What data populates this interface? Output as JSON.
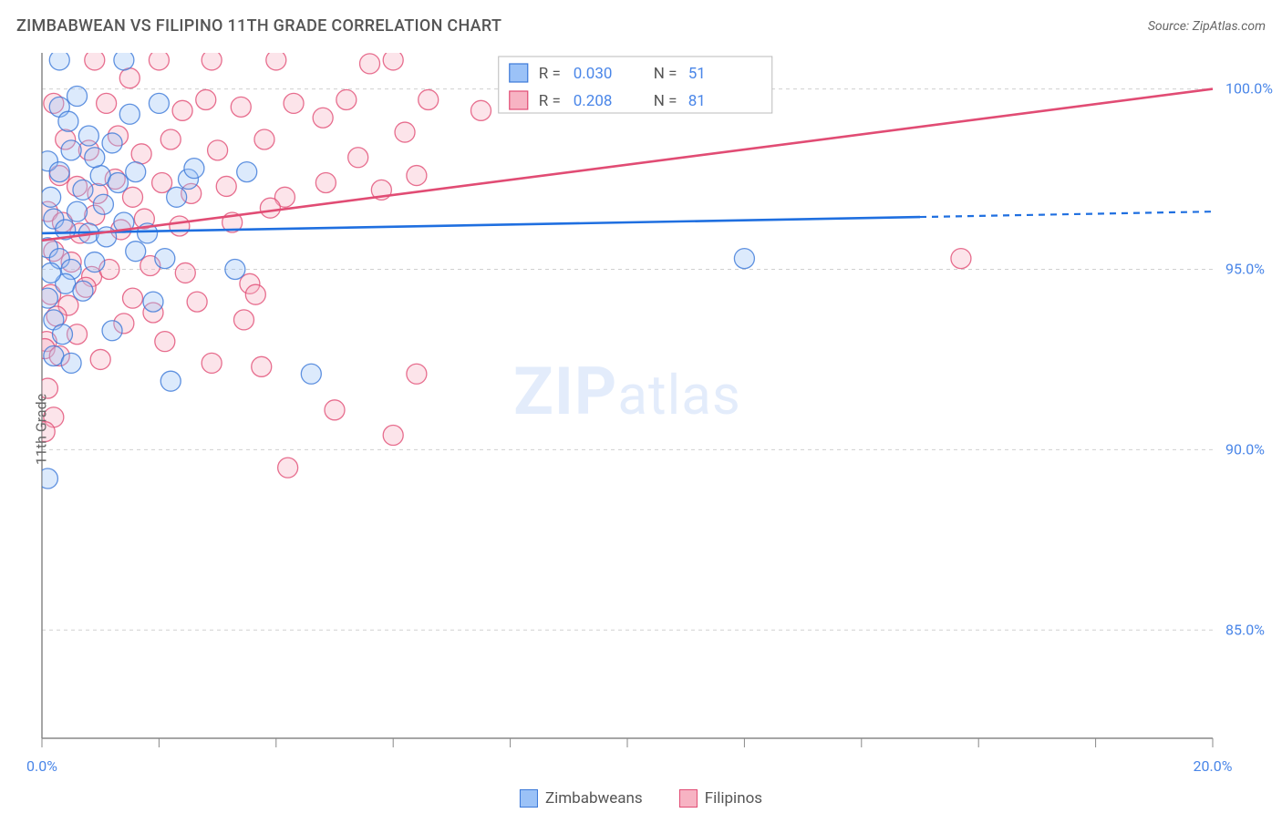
{
  "title": "ZIMBABWEAN VS FILIPINO 11TH GRADE CORRELATION CHART",
  "source_label": "Source: ZipAtlas.com",
  "ylabel": "11th Grade",
  "watermark": {
    "bold": "ZIP",
    "rest": "atlas"
  },
  "chart": {
    "type": "scatter",
    "xlim": [
      0.0,
      20.0
    ],
    "ylim": [
      82.0,
      101.0
    ],
    "x_ticks_major": [
      0.0,
      20.0
    ],
    "x_ticks_minor_step": 2.0,
    "y_grid": [
      85.0,
      90.0,
      95.0,
      100.0
    ],
    "y_tick_labels": [
      "85.0%",
      "90.0%",
      "95.0%",
      "100.0%"
    ],
    "x_tick_labels": [
      "0.0%",
      "20.0%"
    ],
    "background_color": "#ffffff",
    "grid_color": "#d0d0d0",
    "axis_color": "#888888",
    "marker_radius": 11,
    "marker_opacity": 0.35,
    "series": [
      {
        "name": "Zimbabweans",
        "label": "Zimbabweans",
        "fill": "#9bc2f7",
        "stroke": "#3b78d8",
        "line_color": "#1f6fe0",
        "trend": {
          "y_at_x0": 96.0,
          "y_at_xmax": 96.6,
          "solid_until_x": 15.0
        },
        "R": "0.030",
        "N": "51",
        "points": [
          [
            0.3,
            100.8
          ],
          [
            1.4,
            100.8
          ],
          [
            0.1,
            89.2
          ],
          [
            0.3,
            99.5
          ],
          [
            1.5,
            99.3
          ],
          [
            2.0,
            99.6
          ],
          [
            0.8,
            98.7
          ],
          [
            0.1,
            98.0
          ],
          [
            0.3,
            97.7
          ],
          [
            0.7,
            97.2
          ],
          [
            1.0,
            97.6
          ],
          [
            1.3,
            97.4
          ],
          [
            1.6,
            97.7
          ],
          [
            2.5,
            97.5
          ],
          [
            3.5,
            97.7
          ],
          [
            0.2,
            96.4
          ],
          [
            0.4,
            96.1
          ],
          [
            0.6,
            96.6
          ],
          [
            0.8,
            96.0
          ],
          [
            1.1,
            95.9
          ],
          [
            1.4,
            96.3
          ],
          [
            1.8,
            96.0
          ],
          [
            0.1,
            95.6
          ],
          [
            0.3,
            95.3
          ],
          [
            0.5,
            95.0
          ],
          [
            0.9,
            95.2
          ],
          [
            1.6,
            95.5
          ],
          [
            2.1,
            95.3
          ],
          [
            12.0,
            95.3
          ],
          [
            0.4,
            94.6
          ],
          [
            0.1,
            94.2
          ],
          [
            0.7,
            94.4
          ],
          [
            0.2,
            93.6
          ],
          [
            0.35,
            93.2
          ],
          [
            1.2,
            93.3
          ],
          [
            0.15,
            94.9
          ],
          [
            0.2,
            92.6
          ],
          [
            0.5,
            92.4
          ],
          [
            2.2,
            91.9
          ],
          [
            4.6,
            92.1
          ],
          [
            0.5,
            98.3
          ],
          [
            0.9,
            98.1
          ],
          [
            1.2,
            98.5
          ],
          [
            2.3,
            97.0
          ],
          [
            2.6,
            97.8
          ],
          [
            3.3,
            95.0
          ],
          [
            1.9,
            94.1
          ],
          [
            0.15,
            97.0
          ],
          [
            0.45,
            99.1
          ],
          [
            0.6,
            99.8
          ],
          [
            1.05,
            96.8
          ]
        ]
      },
      {
        "name": "Filipinos",
        "label": "Filipinos",
        "fill": "#f7b3c3",
        "stroke": "#e14c74",
        "line_color": "#e14c74",
        "trend": {
          "y_at_x0": 95.8,
          "y_at_xmax": 100.0,
          "solid_until_x": 20.0
        },
        "R": "0.208",
        "N": "81",
        "points": [
          [
            0.9,
            100.8
          ],
          [
            2.0,
            100.8
          ],
          [
            4.0,
            100.8
          ],
          [
            5.6,
            100.7
          ],
          [
            6.0,
            100.8
          ],
          [
            1.5,
            100.3
          ],
          [
            2.9,
            100.8
          ],
          [
            0.2,
            99.6
          ],
          [
            1.1,
            99.6
          ],
          [
            2.4,
            99.4
          ],
          [
            2.8,
            99.7
          ],
          [
            3.4,
            99.5
          ],
          [
            4.3,
            99.6
          ],
          [
            4.8,
            99.2
          ],
          [
            5.2,
            99.7
          ],
          [
            6.6,
            99.7
          ],
          [
            7.5,
            99.4
          ],
          [
            11.8,
            100.2
          ],
          [
            0.4,
            98.6
          ],
          [
            0.8,
            98.3
          ],
          [
            1.3,
            98.7
          ],
          [
            1.7,
            98.2
          ],
          [
            2.2,
            98.6
          ],
          [
            3.0,
            98.3
          ],
          [
            3.8,
            98.6
          ],
          [
            5.4,
            98.1
          ],
          [
            6.2,
            98.8
          ],
          [
            0.3,
            97.6
          ],
          [
            0.6,
            97.3
          ],
          [
            0.95,
            97.1
          ],
          [
            1.25,
            97.5
          ],
          [
            1.55,
            97.0
          ],
          [
            2.05,
            97.4
          ],
          [
            2.55,
            97.1
          ],
          [
            3.15,
            97.3
          ],
          [
            4.15,
            97.0
          ],
          [
            4.85,
            97.4
          ],
          [
            5.8,
            97.2
          ],
          [
            6.4,
            97.6
          ],
          [
            15.7,
            95.3
          ],
          [
            0.1,
            96.6
          ],
          [
            0.35,
            96.3
          ],
          [
            0.65,
            96.0
          ],
          [
            0.9,
            96.5
          ],
          [
            1.35,
            96.1
          ],
          [
            1.75,
            96.4
          ],
          [
            2.35,
            96.2
          ],
          [
            3.25,
            96.3
          ],
          [
            3.9,
            96.7
          ],
          [
            0.2,
            95.5
          ],
          [
            0.5,
            95.2
          ],
          [
            0.85,
            94.8
          ],
          [
            1.15,
            95.0
          ],
          [
            1.85,
            95.1
          ],
          [
            2.45,
            94.9
          ],
          [
            3.55,
            94.6
          ],
          [
            0.15,
            94.3
          ],
          [
            0.45,
            94.0
          ],
          [
            0.75,
            94.5
          ],
          [
            1.55,
            94.2
          ],
          [
            2.65,
            94.1
          ],
          [
            3.65,
            94.3
          ],
          [
            0.25,
            93.7
          ],
          [
            0.6,
            93.2
          ],
          [
            1.4,
            93.5
          ],
          [
            2.1,
            93.0
          ],
          [
            3.45,
            93.6
          ],
          [
            0.08,
            93.0
          ],
          [
            0.05,
            92.8
          ],
          [
            0.3,
            92.6
          ],
          [
            1.0,
            92.5
          ],
          [
            2.9,
            92.4
          ],
          [
            3.75,
            92.3
          ],
          [
            6.4,
            92.1
          ],
          [
            0.1,
            91.7
          ],
          [
            0.2,
            90.9
          ],
          [
            0.05,
            90.5
          ],
          [
            4.2,
            89.5
          ],
          [
            5.0,
            91.1
          ],
          [
            6.0,
            90.4
          ],
          [
            1.9,
            93.8
          ]
        ]
      }
    ]
  },
  "legend_top": {
    "rows": [
      {
        "series": 0
      },
      {
        "series": 1
      }
    ]
  },
  "bottom_legend": [
    {
      "series": 0
    },
    {
      "series": 1
    }
  ]
}
